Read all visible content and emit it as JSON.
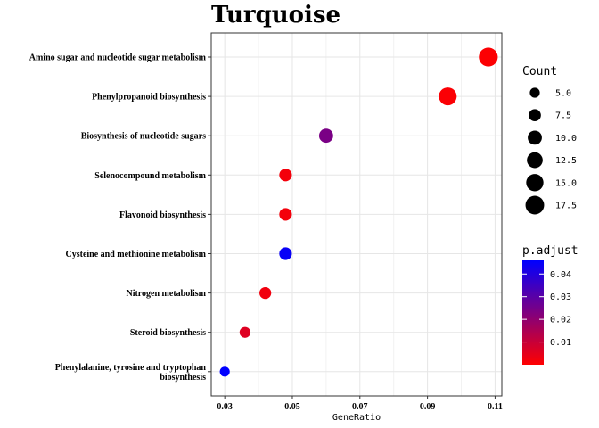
{
  "chart_data": {
    "type": "scatter",
    "title": "Turquoise",
    "xlabel": "GeneRatio",
    "ylabel": "",
    "xlim": [
      0.026,
      0.112
    ],
    "xticks": [
      0.03,
      0.05,
      0.07,
      0.09,
      0.11
    ],
    "xtick_labels": [
      "0.03",
      "0.05",
      "0.07",
      "0.09",
      "0.11"
    ],
    "grid": true,
    "categories": [
      "Amino sugar and nucleotide sugar metabolism",
      "Phenylpropanoid biosynthesis",
      "Biosynthesis of nucleotide sugars",
      "Selenocompound metabolism",
      "Flavonoid biosynthesis",
      "Cysteine and methionine metabolism",
      "Nitrogen metabolism",
      "Steroid biosynthesis",
      "Phenylalanine, tyrosine and tryptophan biosynthesis"
    ],
    "category_lines": [
      [
        "Amino sugar and nucleotide sugar metabolism"
      ],
      [
        "Phenylpropanoid biosynthesis"
      ],
      [
        "Biosynthesis of nucleotide sugars"
      ],
      [
        "Selenocompound metabolism"
      ],
      [
        "Flavonoid biosynthesis"
      ],
      [
        "Cysteine and methionine metabolism"
      ],
      [
        "Nitrogen metabolism"
      ],
      [
        "Steroid biosynthesis"
      ],
      [
        "Phenylalanine, tyrosine and tryptophan",
        "biosynthesis"
      ]
    ],
    "points": [
      {
        "term": "Amino sugar and nucleotide sugar metabolism",
        "gene_ratio": 0.108,
        "count": 18,
        "p_adjust": 0.0005
      },
      {
        "term": "Phenylpropanoid biosynthesis",
        "gene_ratio": 0.096,
        "count": 16,
        "p_adjust": 0.0008
      },
      {
        "term": "Biosynthesis of nucleotide sugars",
        "gene_ratio": 0.06,
        "count": 10,
        "p_adjust": 0.024
      },
      {
        "term": "Selenocompound metabolism",
        "gene_ratio": 0.048,
        "count": 8,
        "p_adjust": 0.002
      },
      {
        "term": "Flavonoid biosynthesis",
        "gene_ratio": 0.048,
        "count": 8,
        "p_adjust": 0.002
      },
      {
        "term": "Cysteine and methionine metabolism",
        "gene_ratio": 0.048,
        "count": 8,
        "p_adjust": 0.0445
      },
      {
        "term": "Nitrogen metabolism",
        "gene_ratio": 0.042,
        "count": 7,
        "p_adjust": 0.0025
      },
      {
        "term": "Steroid biosynthesis",
        "gene_ratio": 0.036,
        "count": 6,
        "p_adjust": 0.006
      },
      {
        "term": "Phenylalanine, tyrosine and tryptophan biosynthesis",
        "gene_ratio": 0.03,
        "count": 5,
        "p_adjust": 0.046
      }
    ],
    "size_legend": {
      "title": "Count",
      "values": [
        5.0,
        7.5,
        10.0,
        12.5,
        15.0,
        17.5
      ],
      "labels": [
        "5.0",
        "7.5",
        "10.0",
        "12.5",
        "15.0",
        "17.5"
      ]
    },
    "color_legend": {
      "title": "p.adjust",
      "range": [
        0.0,
        0.046
      ],
      "ticks": [
        0.01,
        0.02,
        0.03,
        0.04
      ],
      "labels": [
        "0.01",
        "0.02",
        "0.03",
        "0.04"
      ],
      "low_color": "#ff0000",
      "high_color": "#0000ff"
    },
    "legend_position": "right"
  }
}
